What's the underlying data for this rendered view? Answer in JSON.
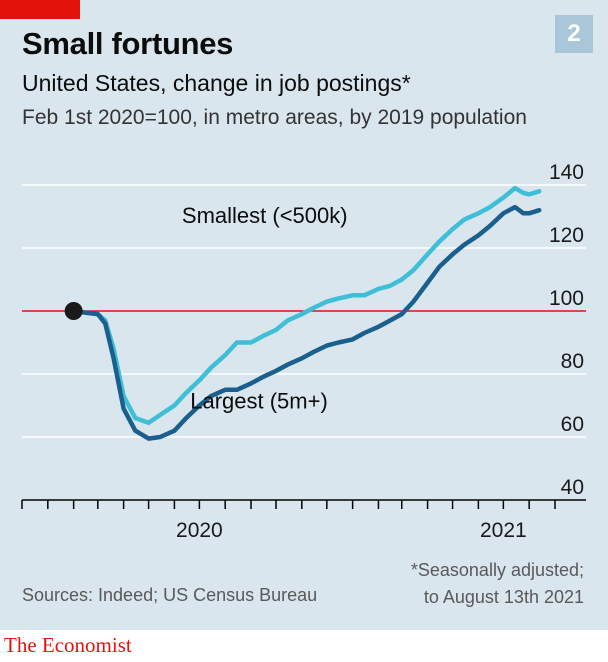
{
  "header": {
    "chart_number": "2",
    "title": "Small fortunes",
    "subtitle": "United States, change in job postings*",
    "subsubtitle": "Feb 1st 2020=100, in metro areas, by 2019 population"
  },
  "footer": {
    "source": "Sources: Indeed; US Census Bureau",
    "footnote_line1": "*Seasonally adjusted;",
    "footnote_line2": "to August 13th 2021",
    "brand": "The Economist"
  },
  "colors": {
    "smallest": "#3ebfd7",
    "largest": "#1b5f8c",
    "reference": "#e3120b",
    "grid": "#ffffff",
    "background": "#d9e6ee"
  },
  "chart_data": {
    "type": "line",
    "ylim": [
      40,
      140
    ],
    "yticks": [
      40,
      60,
      80,
      100,
      120,
      140
    ],
    "ytick_labels": [
      "40",
      "60",
      "80",
      "100",
      "120",
      "140"
    ],
    "x_range": [
      "2019-12-01",
      "2021-09-01"
    ],
    "xtick_labels": [
      {
        "label": "2020",
        "date": "2020-07-01"
      },
      {
        "label": "2021",
        "date": "2021-07-01"
      }
    ],
    "reference_line": 100,
    "start_marker": {
      "date": "2020-02-01",
      "value": 100
    },
    "series": [
      {
        "name": "Smallest (<500k)",
        "key": "smallest",
        "points": [
          [
            "2020-02-01",
            100
          ],
          [
            "2020-02-15",
            99.5
          ],
          [
            "2020-03-01",
            99
          ],
          [
            "2020-03-10",
            97
          ],
          [
            "2020-03-20",
            88
          ],
          [
            "2020-04-01",
            73
          ],
          [
            "2020-04-15",
            66
          ],
          [
            "2020-05-01",
            64.5
          ],
          [
            "2020-05-15",
            67
          ],
          [
            "2020-06-01",
            70
          ],
          [
            "2020-06-15",
            74
          ],
          [
            "2020-07-01",
            78
          ],
          [
            "2020-07-15",
            82
          ],
          [
            "2020-08-01",
            86
          ],
          [
            "2020-08-15",
            90
          ],
          [
            "2020-09-01",
            90
          ],
          [
            "2020-09-15",
            92
          ],
          [
            "2020-10-01",
            94
          ],
          [
            "2020-10-15",
            97
          ],
          [
            "2020-11-01",
            99
          ],
          [
            "2020-11-15",
            101
          ],
          [
            "2020-12-01",
            103
          ],
          [
            "2020-12-15",
            104
          ],
          [
            "2021-01-01",
            105
          ],
          [
            "2021-01-15",
            105
          ],
          [
            "2021-02-01",
            107
          ],
          [
            "2021-02-15",
            108
          ],
          [
            "2021-03-01",
            110
          ],
          [
            "2021-03-15",
            113
          ],
          [
            "2021-04-01",
            118
          ],
          [
            "2021-04-15",
            122
          ],
          [
            "2021-05-01",
            126
          ],
          [
            "2021-05-15",
            129
          ],
          [
            "2021-06-01",
            131
          ],
          [
            "2021-06-15",
            133
          ],
          [
            "2021-07-01",
            136
          ],
          [
            "2021-07-15",
            139
          ],
          [
            "2021-07-25",
            137.5
          ],
          [
            "2021-08-01",
            137
          ],
          [
            "2021-08-13",
            138
          ]
        ],
        "label_anchor": {
          "date": "2020-06-10",
          "value": 128
        }
      },
      {
        "name": "Largest (5m+)",
        "key": "largest",
        "points": [
          [
            "2020-02-01",
            100
          ],
          [
            "2020-02-15",
            99.5
          ],
          [
            "2020-03-01",
            99
          ],
          [
            "2020-03-10",
            96
          ],
          [
            "2020-03-20",
            85
          ],
          [
            "2020-04-01",
            69
          ],
          [
            "2020-04-15",
            62
          ],
          [
            "2020-05-01",
            59.5
          ],
          [
            "2020-05-15",
            60
          ],
          [
            "2020-06-01",
            62
          ],
          [
            "2020-06-15",
            66
          ],
          [
            "2020-07-01",
            70
          ],
          [
            "2020-07-15",
            73
          ],
          [
            "2020-08-01",
            75
          ],
          [
            "2020-08-15",
            75
          ],
          [
            "2020-09-01",
            77
          ],
          [
            "2020-09-15",
            79
          ],
          [
            "2020-10-01",
            81
          ],
          [
            "2020-10-15",
            83
          ],
          [
            "2020-11-01",
            85
          ],
          [
            "2020-11-15",
            87
          ],
          [
            "2020-12-01",
            89
          ],
          [
            "2020-12-15",
            90
          ],
          [
            "2021-01-01",
            91
          ],
          [
            "2021-01-15",
            93
          ],
          [
            "2021-02-01",
            95
          ],
          [
            "2021-02-15",
            97
          ],
          [
            "2021-03-01",
            99
          ],
          [
            "2021-03-15",
            103
          ],
          [
            "2021-04-01",
            109
          ],
          [
            "2021-04-15",
            114
          ],
          [
            "2021-05-01",
            118
          ],
          [
            "2021-05-15",
            121
          ],
          [
            "2021-06-01",
            124
          ],
          [
            "2021-06-15",
            127
          ],
          [
            "2021-07-01",
            131
          ],
          [
            "2021-07-15",
            133
          ],
          [
            "2021-07-25",
            131
          ],
          [
            "2021-08-01",
            131
          ],
          [
            "2021-08-13",
            132
          ]
        ],
        "label_anchor": {
          "date": "2020-06-20",
          "value": 69
        }
      }
    ]
  }
}
